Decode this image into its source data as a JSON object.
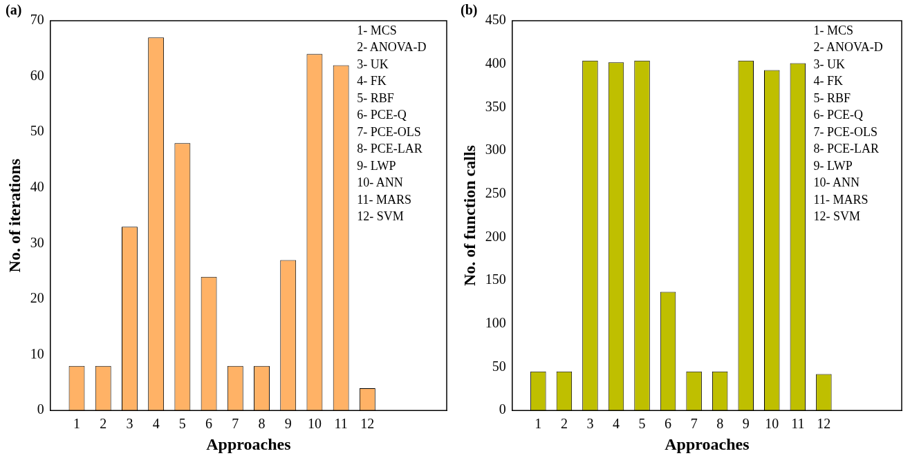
{
  "chart_data": [
    {
      "type": "bar",
      "title": "(a)",
      "xlabel": "Approaches",
      "ylabel": "No. of iterations",
      "x": [
        1,
        2,
        3,
        4,
        5,
        6,
        7,
        8,
        9,
        10,
        11,
        12
      ],
      "values": [
        8,
        8,
        33,
        67,
        48,
        24,
        8,
        8,
        27,
        64,
        62,
        4
      ],
      "color": "#ffb266",
      "xlim": [
        0,
        15
      ],
      "xticks": [
        1,
        2,
        3,
        4,
        5,
        6,
        7,
        8,
        9,
        10,
        11,
        12
      ],
      "ylim": [
        0,
        70
      ],
      "yticks": [
        0,
        10,
        20,
        30,
        40,
        50,
        60,
        70
      ],
      "grid": false,
      "annotations": [
        "1- MCS",
        "2- ANOVA-D",
        "3- UK",
        "4- FK",
        "5- RBF",
        "6- PCE-Q",
        "7- PCE-OLS",
        "8- PCE-LAR",
        "9- LWP",
        "10- ANN",
        "11- MARS",
        "12- SVM"
      ]
    },
    {
      "type": "bar",
      "title": "(b)",
      "xlabel": "Approaches",
      "ylabel": "No. of function calls",
      "x": [
        1,
        2,
        3,
        4,
        5,
        6,
        7,
        8,
        9,
        10,
        11,
        12
      ],
      "values": [
        45,
        45,
        404,
        402,
        404,
        137,
        45,
        45,
        404,
        393,
        401,
        42
      ],
      "color": "#bfbf00",
      "xlim": [
        0,
        15
      ],
      "xticks": [
        1,
        2,
        3,
        4,
        5,
        6,
        7,
        8,
        9,
        10,
        11,
        12
      ],
      "ylim": [
        0,
        450
      ],
      "yticks": [
        0,
        50,
        100,
        150,
        200,
        250,
        300,
        350,
        400,
        450
      ],
      "grid": false,
      "annotations": [
        "1- MCS",
        "2- ANOVA-D",
        "3- UK",
        "4- FK",
        "5- RBF",
        "6- PCE-Q",
        "7- PCE-OLS",
        "8- PCE-LAR",
        "9- LWP",
        "10- ANN",
        "11- MARS",
        "12- SVM"
      ]
    }
  ]
}
